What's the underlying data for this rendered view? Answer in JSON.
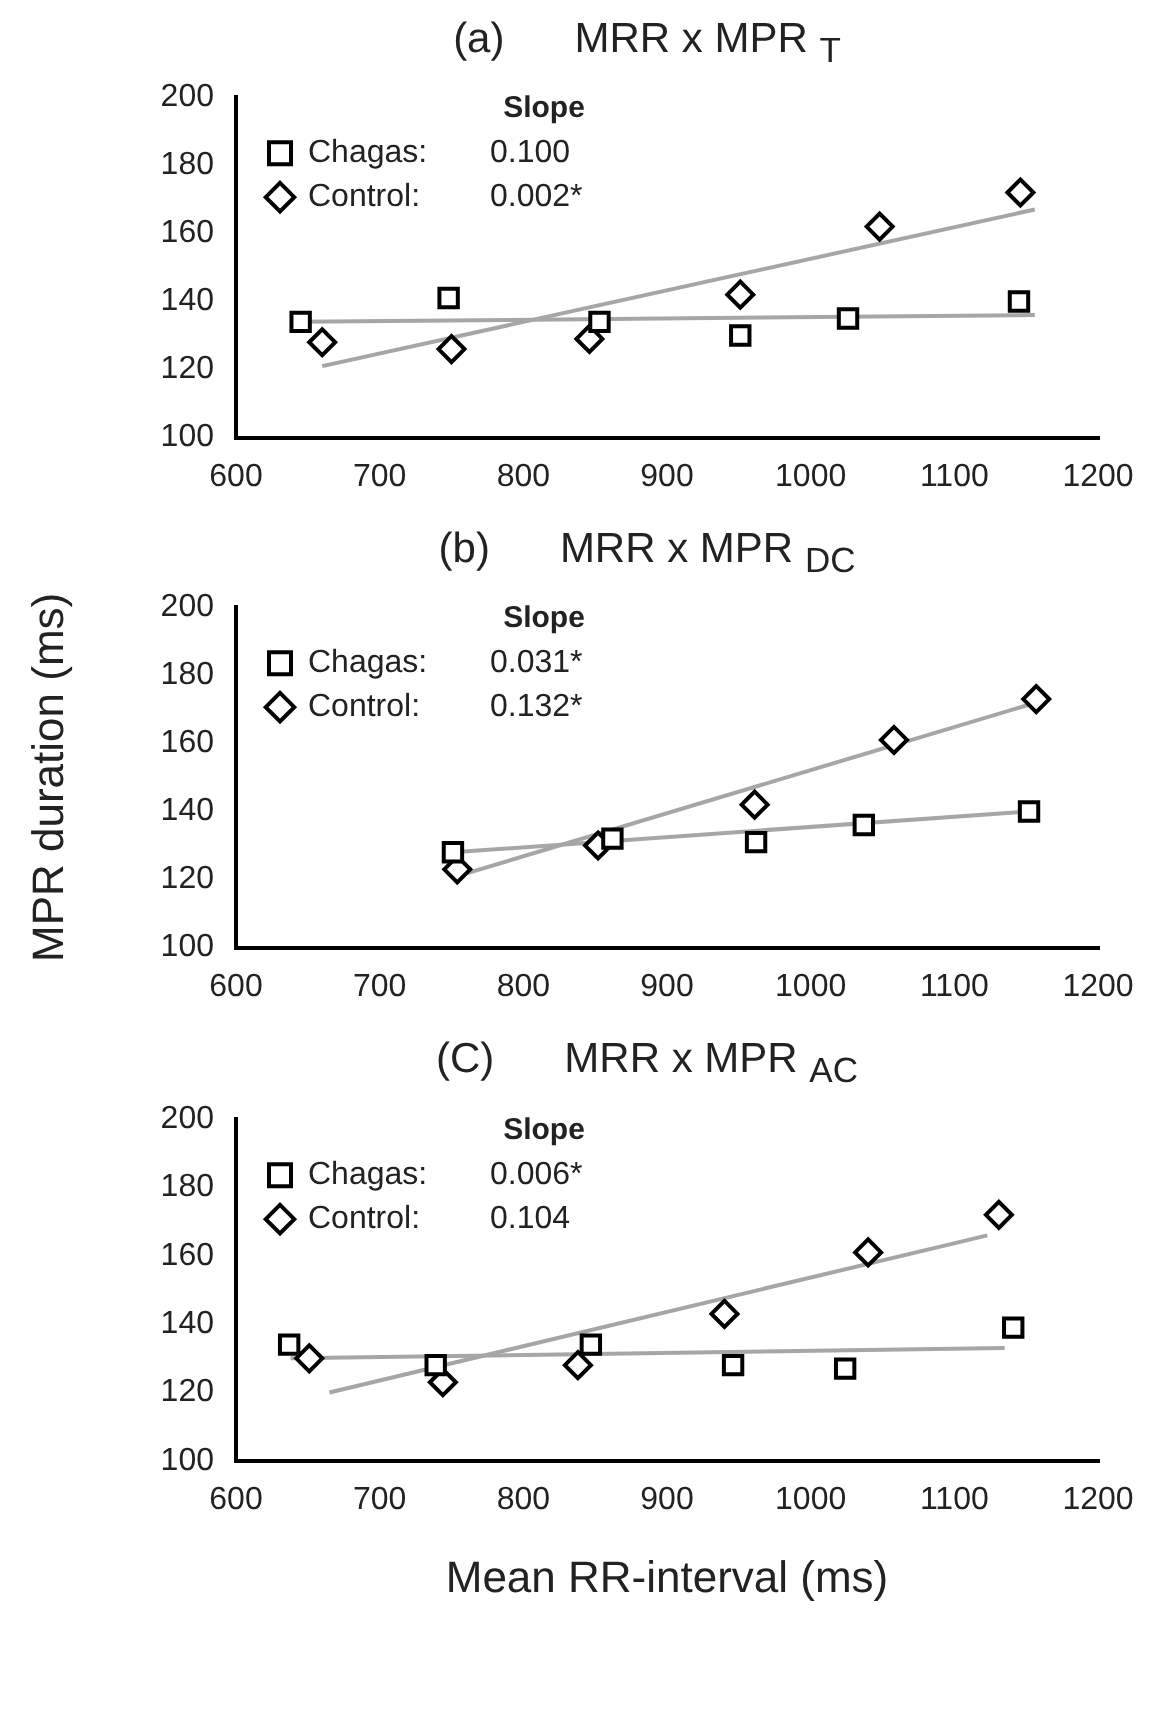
{
  "chart_data": [
    {
      "type": "scatter",
      "title": "(a)      MRR x MPR $_{T}$",
      "legend_title": "Slope",
      "legend": "top left",
      "annotations": [
        "0.100",
        "0.002*"
      ],
      "xlim": [
        600,
        1200
      ],
      "xticks": [
        600,
        700,
        800,
        900,
        1000,
        1100,
        1200
      ],
      "ylim": [
        100,
        200
      ],
      "yticks": [
        100,
        120,
        140,
        160,
        180,
        200
      ],
      "grid": false,
      "series": [
        {
          "name": "Chagas:",
          "color": "#000000",
          "marker": "square",
          "x": [
            645,
            748,
            853,
            951,
            1026,
            1145
          ],
          "values": [
            134,
            141,
            134,
            130,
            135,
            140
          ]
        },
        {
          "name": "Control:",
          "color": "#000000",
          "marker": "diamond",
          "x": [
            660,
            750,
            846,
            951,
            1048,
            1146
          ],
          "values": [
            128,
            126,
            129,
            142,
            162,
            172
          ]
        },
        {
          "type": "line",
          "color": "#a6a6a6",
          "marker": "none",
          "x": [
            645,
            1156
          ],
          "values": [
            134,
            136
          ]
        },
        {
          "type": "line",
          "color": "#a6a6a6",
          "marker": "none",
          "x": [
            660,
            1156
          ],
          "values": [
            121,
            167
          ]
        }
      ]
    },
    {
      "type": "scatter",
      "title": "(b)      MRR x MPR $_{DC}$",
      "ylabel": "MPR duration (ms)",
      "legend_title": "Slope",
      "legend": "top left",
      "annotations": [
        "0.031*",
        "0.132*"
      ],
      "xlim": [
        600,
        1200
      ],
      "xticks": [
        600,
        700,
        800,
        900,
        1000,
        1100,
        1200
      ],
      "ylim": [
        100,
        200
      ],
      "yticks": [
        100,
        120,
        140,
        160,
        180,
        200
      ],
      "grid": false,
      "series": [
        {
          "name": "Chagas:",
          "color": "#000000",
          "marker": "square",
          "x": [
            751,
            862,
            962,
            1037,
            1152
          ],
          "values": [
            128,
            132,
            131,
            136,
            140
          ]
        },
        {
          "name": "Control:",
          "color": "#000000",
          "marker": "diamond",
          "x": [
            754,
            852,
            961,
            1058,
            1157
          ],
          "values": [
            123,
            130,
            142,
            161,
            173
          ]
        },
        {
          "type": "line",
          "color": "#a6a6a6",
          "marker": "none",
          "x": [
            751,
            1152
          ],
          "values": [
            128,
            140
          ]
        },
        {
          "type": "line",
          "color": "#a6a6a6",
          "marker": "none",
          "x": [
            754,
            1157
          ],
          "values": [
            121,
            172
          ]
        }
      ]
    },
    {
      "type": "scatter",
      "title": "(C)      MRR x MPR $_{AC}$",
      "xlabel": "Mean RR-interval (ms)",
      "legend_title": "Slope",
      "legend": "top left",
      "annotations": [
        "0.006*",
        "0.104"
      ],
      "xlim": [
        600,
        1200
      ],
      "xticks": [
        600,
        700,
        800,
        900,
        1000,
        1100,
        1200
      ],
      "ylim": [
        100,
        200
      ],
      "yticks": [
        100,
        120,
        140,
        160,
        180,
        200
      ],
      "grid": false,
      "series": [
        {
          "name": "Chagas:",
          "color": "#000000",
          "marker": "square",
          "x": [
            637,
            739,
            847,
            946,
            1024,
            1141
          ],
          "values": [
            134,
            128,
            134,
            128,
            127,
            139
          ]
        },
        {
          "name": "Control:",
          "color": "#000000",
          "marker": "diamond",
          "x": [
            651,
            744,
            838,
            940,
            1040,
            1131
          ],
          "values": [
            130,
            123,
            128,
            143,
            161,
            172
          ]
        },
        {
          "type": "line",
          "color": "#a6a6a6",
          "marker": "none",
          "x": [
            638,
            1135
          ],
          "values": [
            130,
            133
          ]
        },
        {
          "type": "line",
          "color": "#a6a6a6",
          "marker": "none",
          "x": [
            665,
            1123
          ],
          "values": [
            120,
            166
          ]
        }
      ]
    }
  ]
}
